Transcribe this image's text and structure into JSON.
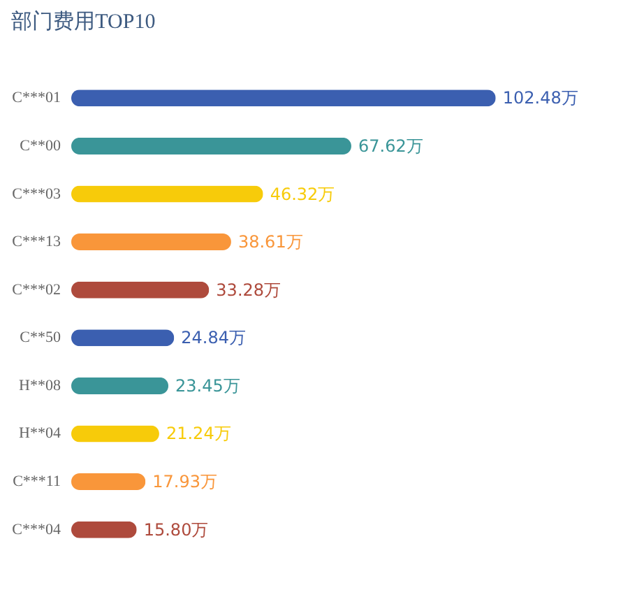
{
  "chart_data": {
    "type": "bar",
    "orientation": "horizontal",
    "title": "部门费用TOP10",
    "categories": [
      "C***01",
      "C**00",
      "C***03",
      "C***13",
      "C***02",
      "C**50",
      "H**08",
      "H**04",
      "C***11",
      "C***04"
    ],
    "values": [
      102.48,
      67.62,
      46.32,
      38.61,
      33.28,
      24.84,
      23.45,
      21.24,
      17.93,
      15.8
    ],
    "value_labels": [
      "102.48万",
      "67.62万",
      "46.32万",
      "38.61万",
      "33.28万",
      "24.84万",
      "23.45万",
      "21.24万",
      "17.93万",
      "15.80万"
    ],
    "colors": [
      "#3b5fb0",
      "#3a9598",
      "#f7cb0a",
      "#f9963a",
      "#ae4a3c",
      "#3b5fb0",
      "#3a9598",
      "#f7cb0a",
      "#f9963a",
      "#ae4a3c"
    ],
    "grid": false,
    "tick_labels": "y"
  }
}
